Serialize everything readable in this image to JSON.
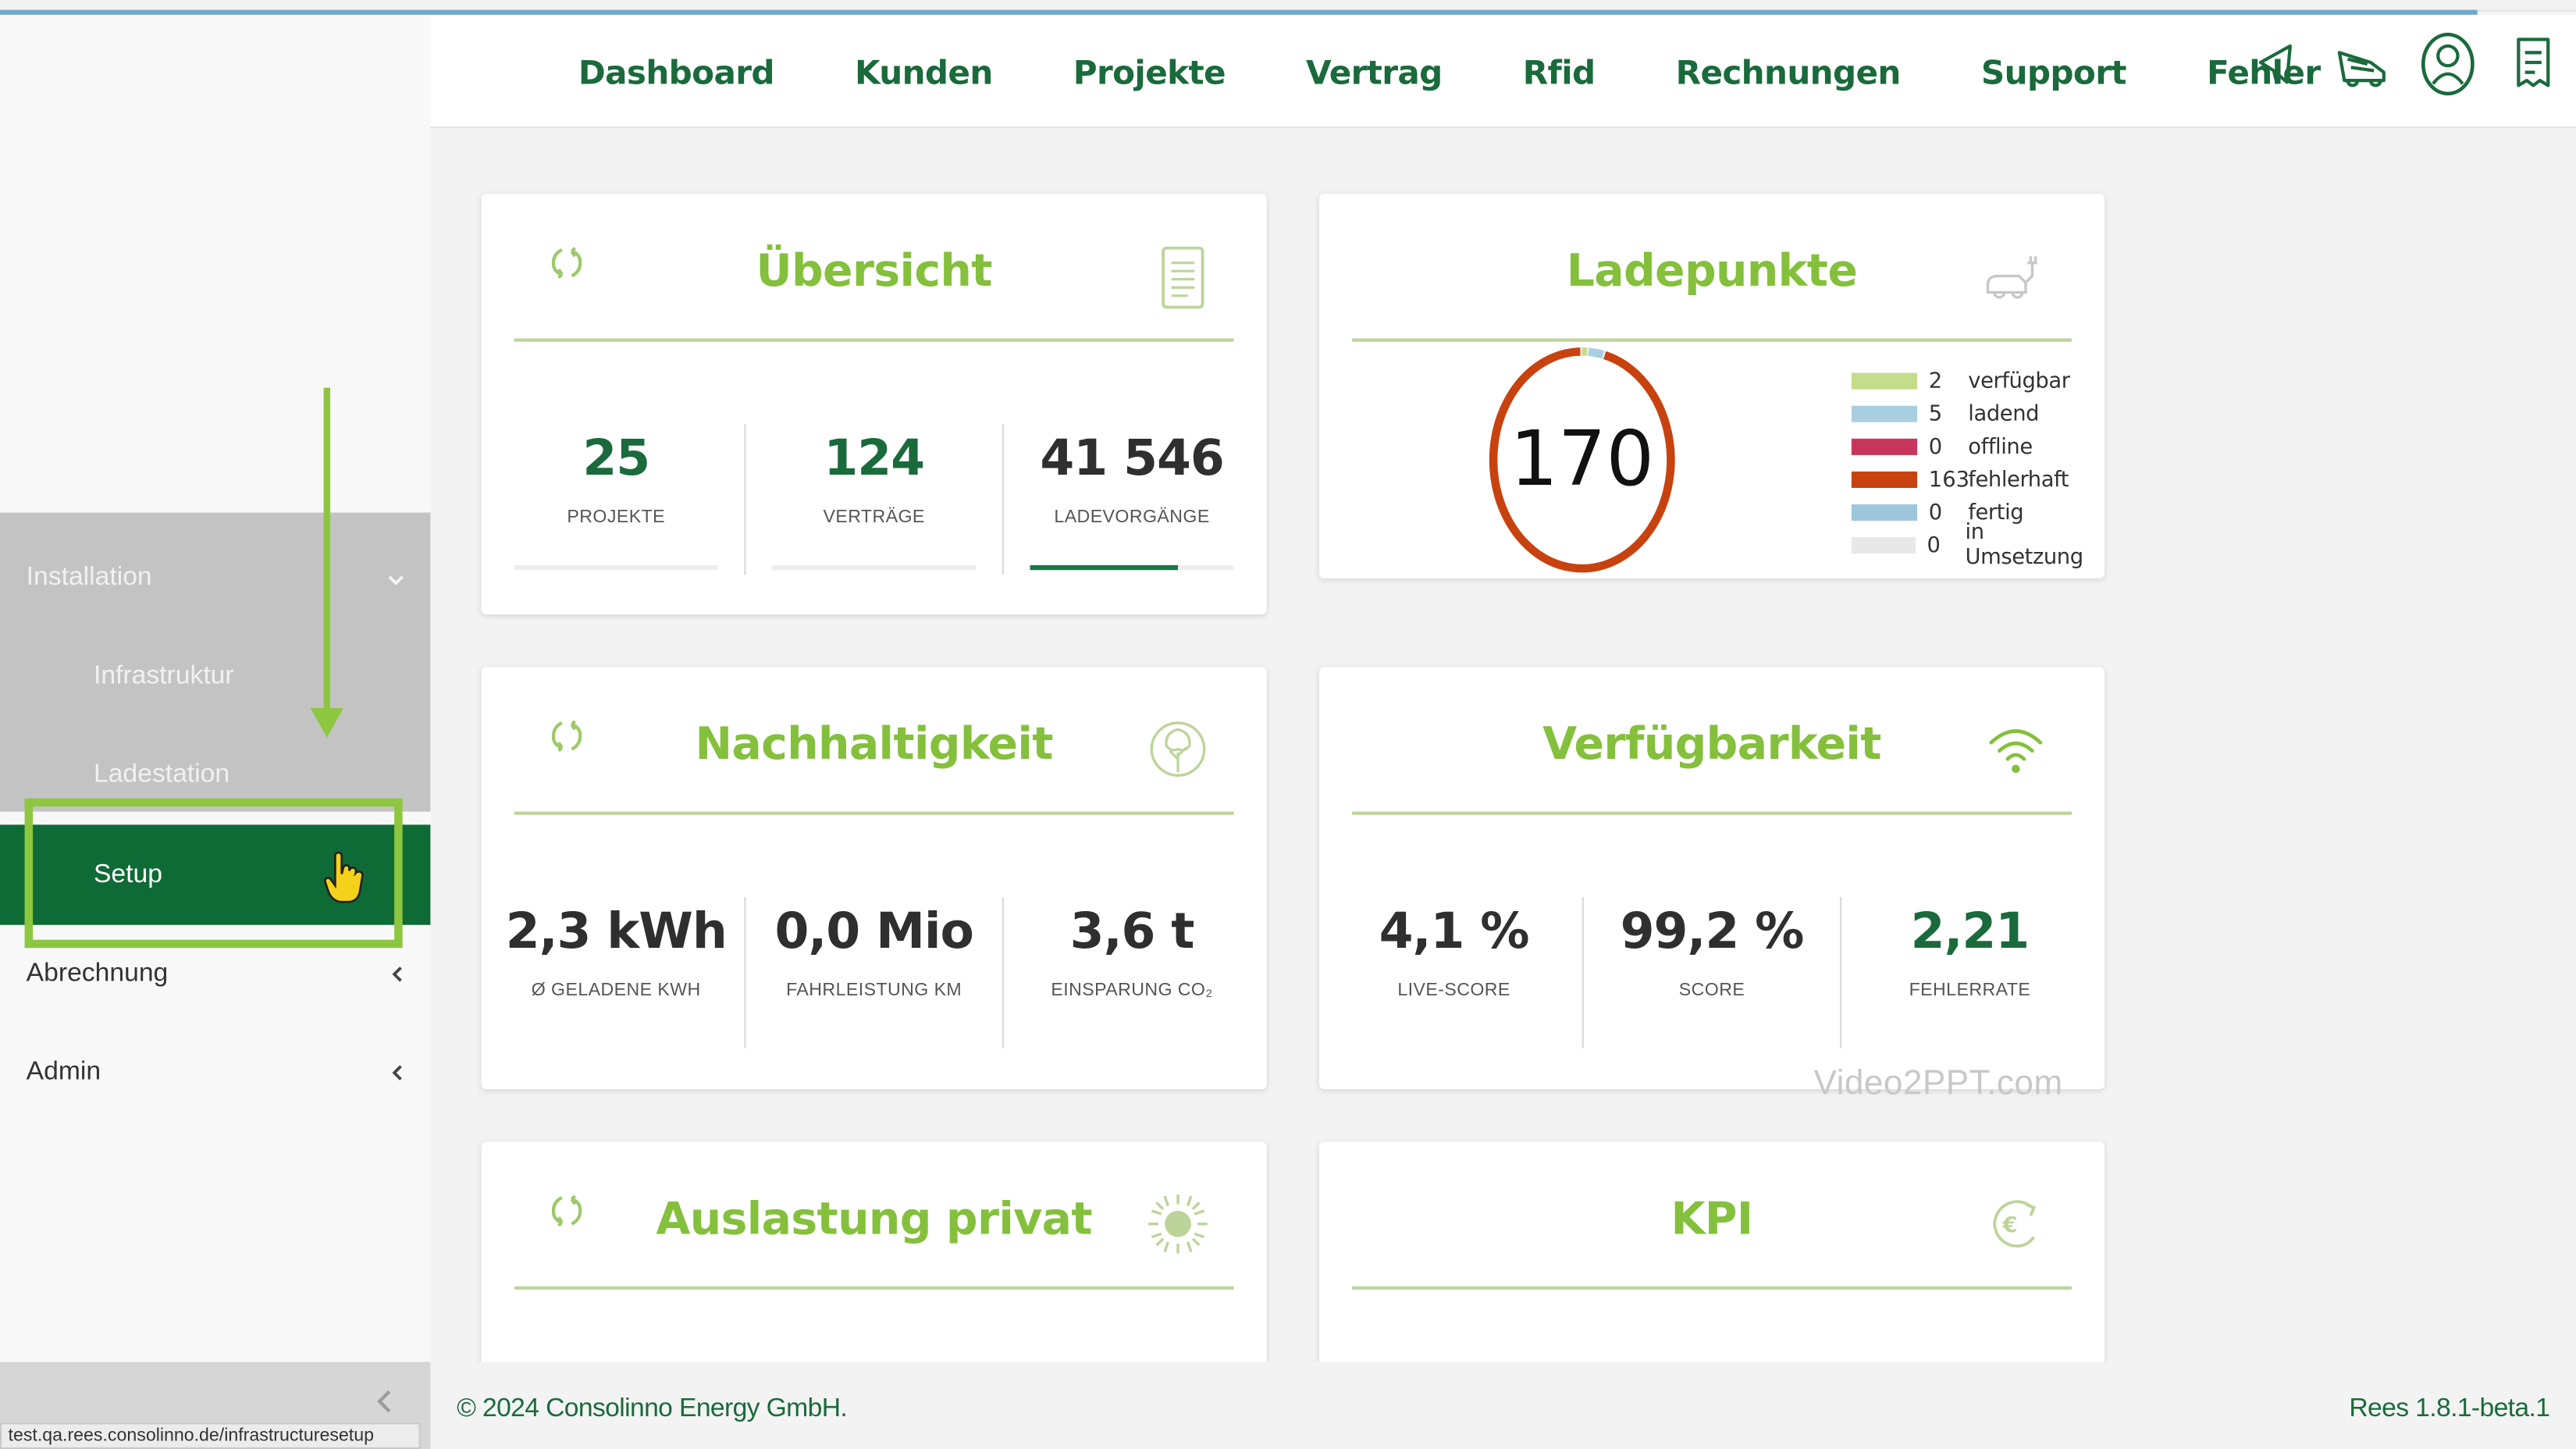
{
  "nav": {
    "items": [
      "Dashboard",
      "Kunden",
      "Projekte",
      "Vertrag",
      "Rfid",
      "Rechnungen",
      "Support",
      "Fehler"
    ]
  },
  "header_icons": [
    "megaphone-icon",
    "truck-icon",
    "user-circle-icon",
    "receipt-icon"
  ],
  "sidebar": {
    "installation": "Installation",
    "infrastruktur": "Infrastruktur",
    "ladestation": "Ladestation",
    "setup": "Setup",
    "abrechnung": "Abrechnung",
    "admin": "Admin",
    "status_url": "test.qa.rees.consolinno.de/infrastructuresetup"
  },
  "cards": {
    "uebersicht": {
      "title": "Übersicht",
      "metrics": [
        {
          "value": "25",
          "label": "PROJEKTE"
        },
        {
          "value": "124",
          "label": "VERTRÄGE"
        },
        {
          "value": "41 546",
          "label": "LADEVORGÄNGE"
        }
      ]
    },
    "ladepunkte": {
      "title": "Ladepunkte",
      "total": "170",
      "legend": [
        {
          "count": "2",
          "label": "verfügbar",
          "color": "#c5dd8a"
        },
        {
          "count": "5",
          "label": "ladend",
          "color": "#a7cfe0"
        },
        {
          "count": "0",
          "label": "offline",
          "color": "#c8365c"
        },
        {
          "count": "163",
          "label": "fehlerhaft",
          "color": "#c8420f"
        },
        {
          "count": "0",
          "label": "fertig",
          "color": "#9cc7dc"
        },
        {
          "count": "0",
          "label": "in Umsetzung",
          "color": "#e8e8e8"
        }
      ]
    },
    "nachhaltigkeit": {
      "title": "Nachhaltigkeit",
      "metrics": [
        {
          "value": "2,3 kWh",
          "label": "Ø GELADENE KWH"
        },
        {
          "value": "0,0 Mio",
          "label": "FAHRLEISTUNG KM"
        },
        {
          "value": "3,6 t",
          "label": "EINSPARUNG CO₂"
        }
      ]
    },
    "verfuegbarkeit": {
      "title": "Verfügbarkeit",
      "metrics": [
        {
          "value": "4,1 %",
          "label": "LIVE-SCORE"
        },
        {
          "value": "99,2 %",
          "label": "SCORE"
        },
        {
          "value": "2,21",
          "label": "FEHLERRATE"
        }
      ]
    },
    "auslastung": {
      "title": "Auslastung privat"
    },
    "kpi": {
      "title": "KPI"
    }
  },
  "watermark": "Video2PPT.com",
  "footer": {
    "copyright": "© 2024 Consolinno Energy GmbH.",
    "version": "Rees 1.8.1-beta.1"
  },
  "colors": {
    "brand_dark": "#1a6a3c",
    "brand_light": "#84c03c",
    "active_bg": "#0e6b36",
    "annotation": "#8dc63f"
  }
}
